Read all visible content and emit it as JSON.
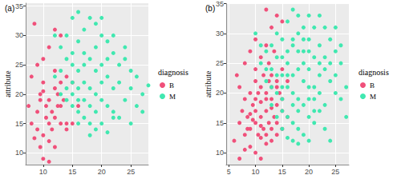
{
  "chart_data": [
    {
      "type": "scatter",
      "title": "(a)",
      "y_label": "attribute",
      "legend_title": "diagnosis",
      "legend": "right",
      "grid": true,
      "xlim": [
        7,
        28
      ],
      "ylim": [
        8,
        35.5
      ],
      "xticks": [
        10,
        15,
        20,
        25
      ],
      "yticks": [
        10,
        15,
        20,
        25,
        30,
        35
      ],
      "series": [
        {
          "name": "B",
          "color": "#F0507A",
          "marker": "circle",
          "x": [
            8,
            8.5,
            9,
            9.5,
            10,
            10.5,
            11,
            11.5,
            12,
            12.5,
            13,
            14,
            10,
            11,
            9.5,
            12,
            13,
            8.5,
            10,
            11,
            12,
            13,
            14,
            15,
            7.5,
            8,
            9,
            10,
            11,
            12,
            13,
            9,
            10,
            11,
            12,
            14,
            15,
            10.5,
            11.5,
            12.5,
            13.5,
            16,
            9.5
          ],
          "values": [
            15,
            12.5,
            17,
            20,
            22,
            16,
            15,
            14,
            16,
            18,
            15,
            15,
            9,
            8.5,
            11,
            31,
            30,
            32,
            20.5,
            19,
            21,
            22,
            23,
            22,
            18,
            23,
            25,
            26,
            28,
            24,
            18,
            14,
            13,
            12,
            11,
            14,
            15,
            18,
            17,
            20,
            19,
            18,
            19
          ]
        },
        {
          "name": "M",
          "color": "#40E8B0",
          "marker": "circle",
          "x": [
            12,
            13,
            14,
            15,
            16,
            17,
            18,
            19,
            20,
            21,
            22,
            23,
            24,
            25,
            26,
            27,
            28,
            15,
            16,
            17,
            18,
            19,
            20,
            21,
            22,
            23,
            24,
            25,
            14,
            15,
            16,
            17,
            18,
            19,
            20,
            21,
            22,
            15,
            16,
            19,
            20,
            18,
            17,
            16,
            15,
            14,
            13,
            17,
            18,
            19,
            20,
            21,
            22,
            23,
            13,
            14,
            16,
            18,
            25,
            26,
            21,
            19,
            17,
            15,
            12,
            20,
            22,
            24,
            27,
            16
          ],
          "values": [
            23,
            24,
            26,
            22,
            24,
            22,
            21,
            20,
            19,
            18,
            17,
            16,
            19,
            21,
            18,
            20,
            21.5,
            27,
            29,
            31,
            33,
            32,
            30,
            29,
            27,
            25,
            26,
            24,
            19,
            18,
            17,
            16,
            15,
            14,
            15,
            13.5,
            16,
            33,
            34,
            28,
            25,
            26,
            25,
            21,
            20,
            21,
            20,
            19,
            18,
            17,
            22,
            23,
            21,
            22,
            28,
            30,
            15,
            13,
            15,
            23,
            26,
            24,
            27,
            25,
            30,
            33,
            30,
            28,
            17,
            19
          ]
        }
      ]
    },
    {
      "type": "scatter",
      "title": "(b)",
      "y_label": "attribute",
      "legend_title": "diagnosis",
      "legend": "right",
      "grid": true,
      "xlim": [
        4.5,
        27.5
      ],
      "ylim": [
        8,
        35
      ],
      "xticks": [
        5,
        10,
        15,
        20,
        25
      ],
      "yticks": [
        10,
        15,
        20,
        25,
        30,
        35
      ],
      "series": [
        {
          "name": "B",
          "color": "#F0507A",
          "marker": "circle",
          "x": [
            6,
            7,
            7.5,
            8,
            8.5,
            9,
            9.5,
            10,
            10.5,
            11,
            11.5,
            12,
            12.5,
            13,
            13.5,
            14,
            14.5,
            15,
            9,
            10,
            11,
            12,
            13,
            14,
            10,
            11,
            12,
            13,
            12,
            14,
            15,
            9,
            10,
            11,
            12,
            13,
            8,
            7,
            6.5,
            8,
            9,
            10,
            11,
            12,
            13,
            14,
            15,
            16,
            11,
            10,
            9.5,
            12,
            13,
            14,
            15,
            16,
            8,
            10.5,
            11.5,
            12.5,
            13.5,
            9,
            10,
            11,
            12.5,
            14,
            7,
            8.5,
            13,
            15
          ],
          "values": [
            12,
            15,
            17,
            13,
            16,
            14,
            18,
            15,
            13,
            16,
            14,
            17,
            15,
            19,
            16,
            18,
            20,
            17,
            20,
            22,
            21,
            20,
            23,
            22,
            24,
            26,
            28,
            31,
            34,
            33,
            32,
            11,
            10,
            9,
            11.5,
            12,
            19,
            21,
            23,
            25,
            27,
            29,
            18.5,
            19,
            14,
            15,
            14,
            16,
            12.5,
            17,
            15.5,
            13,
            17.5,
            21,
            24,
            22,
            10.5,
            20,
            23,
            25,
            27,
            16.5,
            19,
            14.5,
            22,
            13,
            9,
            14,
            21,
            19
          ]
        },
        {
          "name": "M",
          "color": "#40E8B0",
          "marker": "circle",
          "x": [
            11,
            12,
            13,
            14,
            15,
            16,
            17,
            18,
            19,
            20,
            21,
            22,
            23,
            24,
            25,
            26,
            27,
            14,
            15,
            16,
            17,
            18,
            19,
            20,
            21,
            22,
            23,
            24,
            25,
            16,
            17,
            18,
            19,
            20,
            15,
            14,
            13,
            12,
            15,
            16,
            17,
            18,
            19,
            20,
            21,
            22,
            23,
            24,
            18,
            16,
            17,
            18,
            19,
            20,
            21,
            22,
            23,
            24,
            25,
            26,
            14,
            13,
            16,
            17,
            18,
            19,
            20,
            21,
            22,
            15,
            16,
            17,
            18,
            19,
            20,
            21,
            15,
            14,
            13,
            12,
            11,
            10,
            27,
            26,
            25,
            23,
            22,
            20,
            17,
            15
          ],
          "values": [
            25,
            22,
            24,
            26,
            23,
            21,
            20,
            19,
            22,
            24,
            21,
            20,
            18,
            22,
            20,
            19,
            21,
            20,
            19,
            25,
            28,
            30,
            27,
            29,
            31,
            28,
            26,
            25,
            27,
            32,
            34,
            33,
            31,
            33,
            29,
            30,
            28,
            27,
            17,
            16,
            15,
            14,
            13,
            16,
            15,
            17,
            14,
            12,
            11.5,
            12.5,
            18,
            17,
            18,
            19,
            19,
            23,
            24,
            29,
            23,
            25,
            23,
            21,
            23,
            23,
            24,
            25,
            21,
            26,
            25,
            26,
            27,
            29,
            27,
            29,
            27,
            17,
            21,
            16,
            18,
            24,
            28,
            30,
            16,
            28,
            31,
            31,
            33,
            12,
            12,
            14
          ]
        }
      ]
    }
  ]
}
